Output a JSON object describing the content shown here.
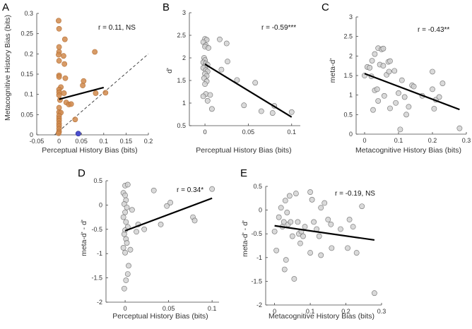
{
  "colors": {
    "orange": "#d08a4c",
    "orange_edge": "#b46e34",
    "blue": "#4b4fcf",
    "gray": "#cfcfcf",
    "gray_edge": "#6e6e6e",
    "fit": "#000000"
  },
  "chart_data": [
    {
      "id": "A",
      "type": "scatter",
      "panel_label": "A",
      "xlabel": "Perceptual History Bias (bits)",
      "ylabel": "Metacognitive History Bias (bits)",
      "xlim": [
        -0.05,
        0.2
      ],
      "ylim": [
        0,
        0.3
      ],
      "xticks": [
        -0.05,
        0,
        0.05,
        0.1,
        0.15,
        0.2
      ],
      "xticklabels": [
        "-0.05",
        "0",
        "0.05",
        "0.1",
        "0.15",
        "0.2"
      ],
      "yticks": [
        0,
        0.05,
        0.1,
        0.15,
        0.2,
        0.25,
        0.3
      ],
      "yticklabels": [
        "0",
        "0.05",
        "0.1",
        "0.15",
        "0.2",
        "0.25",
        "0.3"
      ],
      "annotation": "r = 0.11, NS",
      "marker": "orange",
      "points": [
        {
          "x": -0.001,
          "y": 0.282
        },
        {
          "x": 0.0,
          "y": 0.262
        },
        {
          "x": 0.013,
          "y": 0.236
        },
        {
          "x": 0.0,
          "y": 0.217
        },
        {
          "x": 0.0,
          "y": 0.205
        },
        {
          "x": -0.001,
          "y": 0.198
        },
        {
          "x": 0.01,
          "y": 0.195
        },
        {
          "x": 0.0,
          "y": 0.183
        },
        {
          "x": 0.012,
          "y": 0.175
        },
        {
          "x": 0.0,
          "y": 0.147
        },
        {
          "x": 0.0,
          "y": 0.143
        },
        {
          "x": 0.014,
          "y": 0.14
        },
        {
          "x": 0.004,
          "y": 0.118
        },
        {
          "x": 0.0,
          "y": 0.112
        },
        {
          "x": 0.0,
          "y": 0.105
        },
        {
          "x": 0.011,
          "y": 0.103
        },
        {
          "x": 0.0,
          "y": 0.098
        },
        {
          "x": 0.002,
          "y": 0.086
        },
        {
          "x": 0.016,
          "y": 0.08
        },
        {
          "x": 0.022,
          "y": 0.075
        },
        {
          "x": 0.027,
          "y": 0.076
        },
        {
          "x": 0.0,
          "y": 0.067
        },
        {
          "x": 0.0,
          "y": 0.056
        },
        {
          "x": 0.004,
          "y": 0.055
        },
        {
          "x": 0.0,
          "y": 0.047
        },
        {
          "x": 0.0,
          "y": 0.041
        },
        {
          "x": 0.0,
          "y": 0.035
        },
        {
          "x": 0.0,
          "y": 0.028
        },
        {
          "x": 0.0,
          "y": 0.022
        },
        {
          "x": 0.0,
          "y": 0.015
        },
        {
          "x": 0.0,
          "y": 0.008
        },
        {
          "x": -0.001,
          "y": 0.004
        },
        {
          "x": 0.036,
          "y": 0.038
        },
        {
          "x": 0.053,
          "y": 0.122
        },
        {
          "x": 0.055,
          "y": 0.133
        },
        {
          "x": 0.08,
          "y": 0.205
        },
        {
          "x": 0.082,
          "y": 0.103
        },
        {
          "x": 0.104,
          "y": 0.104
        }
      ],
      "special_points": [
        {
          "x": 0.043,
          "y": 0.003,
          "color": "blue"
        }
      ],
      "fit_line": [
        [
          0.0,
          0.088
        ],
        [
          0.1,
          0.117
        ]
      ],
      "identity_line": [
        [
          -0.01,
          -0.01
        ],
        [
          0.2,
          0.2
        ]
      ]
    },
    {
      "id": "B",
      "type": "scatter",
      "panel_label": "B",
      "xlabel": "Perceptual History Bias (bits)",
      "ylabel": "d'",
      "xlim": [
        -0.018,
        0.11
      ],
      "ylim": [
        0.5,
        3
      ],
      "xticks": [
        0,
        0.05,
        0.1
      ],
      "xticklabels": [
        "0",
        "0.05",
        "0.1"
      ],
      "yticks": [
        0.5,
        1,
        1.5,
        2,
        2.5,
        3
      ],
      "yticklabels": [
        "0.5",
        "1",
        "1.5",
        "2",
        "2.5",
        "3"
      ],
      "annotation": "r = -0.59***",
      "marker": "gray",
      "points": [
        {
          "x": 0.0,
          "y": 2.42
        },
        {
          "x": 0.002,
          "y": 2.4
        },
        {
          "x": -0.002,
          "y": 2.35
        },
        {
          "x": 0.001,
          "y": 2.28
        },
        {
          "x": 0.0,
          "y": 2.25
        },
        {
          "x": 0.004,
          "y": 2.22
        },
        {
          "x": -0.001,
          "y": 2.0
        },
        {
          "x": 0.0,
          "y": 1.95
        },
        {
          "x": -0.002,
          "y": 1.9
        },
        {
          "x": 0.001,
          "y": 1.88
        },
        {
          "x": 0.003,
          "y": 1.85
        },
        {
          "x": 0.0,
          "y": 1.82
        },
        {
          "x": -0.002,
          "y": 1.78
        },
        {
          "x": 0.001,
          "y": 1.73
        },
        {
          "x": 0.003,
          "y": 1.7
        },
        {
          "x": 0.0,
          "y": 1.65
        },
        {
          "x": 0.002,
          "y": 1.6
        },
        {
          "x": -0.001,
          "y": 1.55
        },
        {
          "x": 0.002,
          "y": 1.48
        },
        {
          "x": 0.0,
          "y": 1.42
        },
        {
          "x": 0.001,
          "y": 1.2
        },
        {
          "x": -0.002,
          "y": 1.15
        },
        {
          "x": 0.006,
          "y": 1.18
        },
        {
          "x": 0.003,
          "y": 1.05
        },
        {
          "x": 0.008,
          "y": 0.87
        },
        {
          "x": 0.017,
          "y": 2.41
        },
        {
          "x": 0.025,
          "y": 2.32
        },
        {
          "x": 0.026,
          "y": 1.92
        },
        {
          "x": 0.019,
          "y": 1.74
        },
        {
          "x": 0.037,
          "y": 1.51
        },
        {
          "x": 0.045,
          "y": 0.95
        },
        {
          "x": 0.058,
          "y": 1.45
        },
        {
          "x": 0.065,
          "y": 0.82
        },
        {
          "x": 0.08,
          "y": 0.94
        },
        {
          "x": 0.078,
          "y": 0.78
        },
        {
          "x": 0.1,
          "y": 0.8
        }
      ],
      "fit_line": [
        [
          0.0,
          1.86
        ],
        [
          0.1,
          0.69
        ]
      ]
    },
    {
      "id": "C",
      "type": "scatter",
      "panel_label": "C",
      "xlabel": "Metacognitive History Bias (bits)",
      "ylabel": "meta-d'",
      "xlim": [
        -0.025,
        0.3
      ],
      "ylim": [
        0,
        3
      ],
      "xticks": [
        0,
        0.1,
        0.2,
        0.3
      ],
      "xticklabels": [
        "0",
        "0.1",
        "0.2",
        "0.3"
      ],
      "yticks": [
        0,
        0.5,
        1,
        1.5,
        2,
        2.5,
        3
      ],
      "yticklabels": [
        "0",
        "0.5",
        "1",
        "1.5",
        "2",
        "2.5",
        "3"
      ],
      "annotation": "r = -0.43**",
      "marker": "gray",
      "points": [
        {
          "x": 0.0,
          "y": 1.5
        },
        {
          "x": 0.008,
          "y": 1.72
        },
        {
          "x": 0.015,
          "y": 1.7
        },
        {
          "x": 0.022,
          "y": 1.88
        },
        {
          "x": 0.03,
          "y": 2.05
        },
        {
          "x": 0.04,
          "y": 2.2
        },
        {
          "x": 0.05,
          "y": 2.17
        },
        {
          "x": 0.055,
          "y": 2.19
        },
        {
          "x": 0.045,
          "y": 1.78
        },
        {
          "x": 0.055,
          "y": 1.75
        },
        {
          "x": 0.07,
          "y": 1.85
        },
        {
          "x": 0.075,
          "y": 1.87
        },
        {
          "x": 0.02,
          "y": 1.48
        },
        {
          "x": 0.03,
          "y": 1.12
        },
        {
          "x": 0.037,
          "y": 1.15
        },
        {
          "x": 0.04,
          "y": 0.85
        },
        {
          "x": 0.025,
          "y": 0.62
        },
        {
          "x": 0.058,
          "y": 0.98
        },
        {
          "x": 0.065,
          "y": 1.52
        },
        {
          "x": 0.072,
          "y": 1.6
        },
        {
          "x": 0.088,
          "y": 1.62
        },
        {
          "x": 0.075,
          "y": 0.66
        },
        {
          "x": 0.092,
          "y": 0.8
        },
        {
          "x": 0.1,
          "y": 1.05
        },
        {
          "x": 0.105,
          "y": 0.12
        },
        {
          "x": 0.11,
          "y": 1.38
        },
        {
          "x": 0.118,
          "y": 0.95
        },
        {
          "x": 0.123,
          "y": 0.5
        },
        {
          "x": 0.13,
          "y": 0.7
        },
        {
          "x": 0.14,
          "y": 1.25
        },
        {
          "x": 0.145,
          "y": 1.22
        },
        {
          "x": 0.17,
          "y": 0.98
        },
        {
          "x": 0.2,
          "y": 1.6
        },
        {
          "x": 0.2,
          "y": 1.15
        },
        {
          "x": 0.205,
          "y": 0.65
        },
        {
          "x": 0.21,
          "y": 0.88
        },
        {
          "x": 0.22,
          "y": 0.95
        },
        {
          "x": 0.23,
          "y": 1.3
        },
        {
          "x": 0.28,
          "y": 0.15
        }
      ],
      "fit_line": [
        [
          0.0,
          1.55
        ],
        [
          0.28,
          0.63
        ]
      ]
    },
    {
      "id": "D",
      "type": "scatter",
      "panel_label": "D",
      "xlabel": "Perceptual History Bias (bits)",
      "ylabel": "meta-d' - d'",
      "xlim": [
        -0.022,
        0.108
      ],
      "ylim": [
        -2,
        0.5
      ],
      "xticks": [
        0,
        0.05,
        0.1
      ],
      "xticklabels": [
        "0",
        "0.05",
        "0.1"
      ],
      "yticks": [
        -2,
        -1.5,
        -1,
        -0.5,
        0,
        0.5
      ],
      "yticklabels": [
        "-2",
        "-1.5",
        "-1",
        "-0.5",
        "0",
        "0.5"
      ],
      "annotation": "r = 0.34*",
      "marker": "gray",
      "points": [
        {
          "x": 0.0,
          "y": 0.4
        },
        {
          "x": 0.003,
          "y": 0.42
        },
        {
          "x": -0.002,
          "y": 0.25
        },
        {
          "x": 0.0,
          "y": 0.2
        },
        {
          "x": 0.001,
          "y": 0.1
        },
        {
          "x": -0.001,
          "y": 0.02
        },
        {
          "x": 0.002,
          "y": -0.05
        },
        {
          "x": 0.0,
          "y": -0.15
        },
        {
          "x": -0.002,
          "y": -0.25
        },
        {
          "x": 0.001,
          "y": -0.35
        },
        {
          "x": 0.003,
          "y": -0.45
        },
        {
          "x": 0.0,
          "y": -0.52
        },
        {
          "x": -0.001,
          "y": -0.6
        },
        {
          "x": 0.001,
          "y": -0.7
        },
        {
          "x": 0.002,
          "y": -0.78
        },
        {
          "x": -0.002,
          "y": -0.88
        },
        {
          "x": 0.0,
          "y": -0.98
        },
        {
          "x": 0.004,
          "y": -1.25
        },
        {
          "x": 0.003,
          "y": -1.42
        },
        {
          "x": -0.001,
          "y": -1.72
        },
        {
          "x": 0.001,
          "y": -1.55
        },
        {
          "x": 0.006,
          "y": -0.92
        },
        {
          "x": 0.008,
          "y": -0.1
        },
        {
          "x": 0.013,
          "y": -0.55
        },
        {
          "x": 0.015,
          "y": -0.4
        },
        {
          "x": 0.022,
          "y": -0.5
        },
        {
          "x": 0.033,
          "y": 0.3
        },
        {
          "x": 0.041,
          "y": -0.4
        },
        {
          "x": 0.048,
          "y": -0.02
        },
        {
          "x": 0.052,
          "y": 0.05
        },
        {
          "x": 0.078,
          "y": -0.25
        },
        {
          "x": 0.08,
          "y": -0.32
        },
        {
          "x": 0.1,
          "y": 0.33
        }
      ],
      "fit_line": [
        [
          0.0,
          -0.53
        ],
        [
          0.1,
          0.14
        ]
      ]
    },
    {
      "id": "E",
      "type": "scatter",
      "panel_label": "E",
      "xlabel": "Metacognitive History Bias (bits)",
      "ylabel": "meta-d' - d'",
      "xlim": [
        -0.025,
        0.3
      ],
      "ylim": [
        -2,
        0.5
      ],
      "xticks": [
        0,
        0.1,
        0.2,
        0.3
      ],
      "xticklabels": [
        "0",
        "0.1",
        "0.2",
        "0.3"
      ],
      "yticks": [
        -2,
        -1.5,
        -1,
        -0.5,
        0,
        0.5
      ],
      "yticklabels": [
        "-2",
        "-1.5",
        "-1",
        "-0.5",
        "0",
        "0.5"
      ],
      "annotation": "r = -0.19, NS",
      "marker": "gray",
      "points": [
        {
          "x": 0.0,
          "y": -0.45
        },
        {
          "x": 0.005,
          "y": -0.85
        },
        {
          "x": 0.012,
          "y": -0.15
        },
        {
          "x": 0.018,
          "y": 0.05
        },
        {
          "x": 0.022,
          "y": -0.35
        },
        {
          "x": 0.026,
          "y": -0.25
        },
        {
          "x": 0.03,
          "y": 0.2
        },
        {
          "x": 0.035,
          "y": -0.05
        },
        {
          "x": 0.038,
          "y": -0.3
        },
        {
          "x": 0.042,
          "y": 0.3
        },
        {
          "x": 0.045,
          "y": -0.25
        },
        {
          "x": 0.05,
          "y": -0.55
        },
        {
          "x": 0.055,
          "y": -1.45
        },
        {
          "x": 0.06,
          "y": 0.35
        },
        {
          "x": 0.065,
          "y": -0.25
        },
        {
          "x": 0.068,
          "y": -0.5
        },
        {
          "x": 0.072,
          "y": -0.7
        },
        {
          "x": 0.075,
          "y": -0.45
        },
        {
          "x": 0.08,
          "y": -0.55
        },
        {
          "x": 0.085,
          "y": -0.35
        },
        {
          "x": 0.028,
          "y": -1.25
        },
        {
          "x": 0.032,
          "y": -1.05
        },
        {
          "x": 0.1,
          "y": 0.38
        },
        {
          "x": 0.105,
          "y": 0.22
        },
        {
          "x": 0.11,
          "y": -0.25
        },
        {
          "x": 0.118,
          "y": -0.4
        },
        {
          "x": 0.125,
          "y": -0.55
        },
        {
          "x": 0.13,
          "y": 0.05
        },
        {
          "x": 0.14,
          "y": 0.15
        },
        {
          "x": 0.15,
          "y": -0.2
        },
        {
          "x": 0.158,
          "y": -0.3
        },
        {
          "x": 0.1,
          "y": -0.9
        },
        {
          "x": 0.13,
          "y": -0.95
        },
        {
          "x": 0.16,
          "y": -0.8
        },
        {
          "x": 0.185,
          "y": -0.4
        },
        {
          "x": 0.205,
          "y": -0.8
        },
        {
          "x": 0.21,
          "y": -0.2
        },
        {
          "x": 0.22,
          "y": -0.35
        },
        {
          "x": 0.23,
          "y": -0.9
        },
        {
          "x": 0.245,
          "y": 0.08
        },
        {
          "x": 0.28,
          "y": -1.75
        }
      ],
      "fit_line": [
        [
          0.0,
          -0.33
        ],
        [
          0.28,
          -0.63
        ]
      ]
    }
  ]
}
